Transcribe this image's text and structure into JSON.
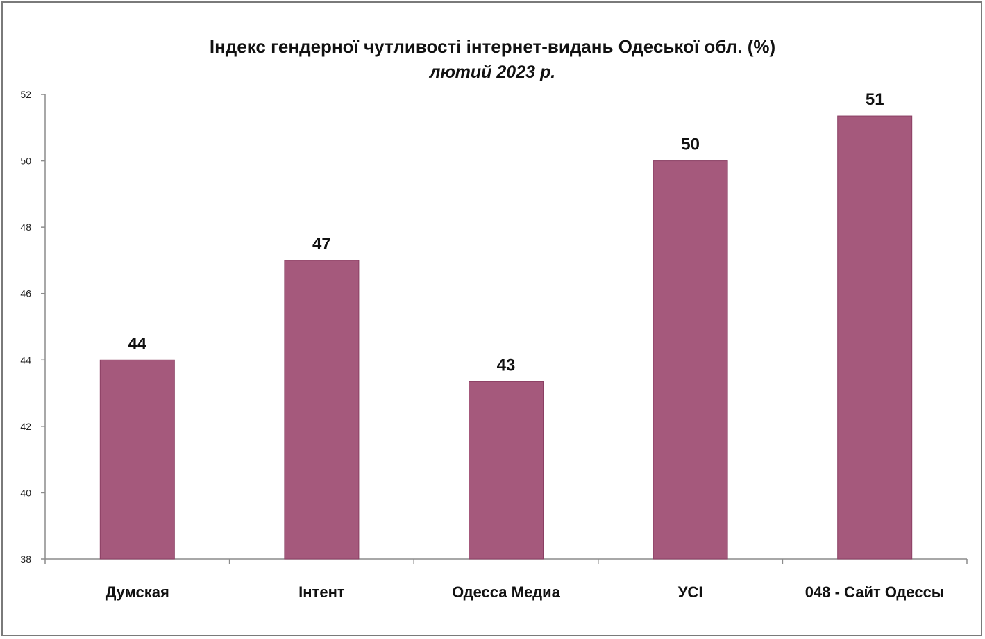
{
  "chart_data": {
    "type": "bar",
    "title": "Індекс гендерної чутливості інтернет-видань Одеської обл. (%)",
    "subtitle": "лютий 2023 р.",
    "categories": [
      "Думская",
      "Інтент",
      "Одесса Медиа",
      "УСІ",
      "048 - Сайт Одессы"
    ],
    "values": [
      44,
      47,
      43.35,
      50,
      51.35
    ],
    "data_labels": [
      "44",
      "47",
      "43",
      "50",
      "51"
    ],
    "ylim": [
      38,
      52
    ],
    "yticks": [
      38,
      40,
      42,
      44,
      46,
      48,
      50,
      52
    ],
    "grid": false,
    "legend": "none",
    "bar_color": "#a5597c"
  }
}
